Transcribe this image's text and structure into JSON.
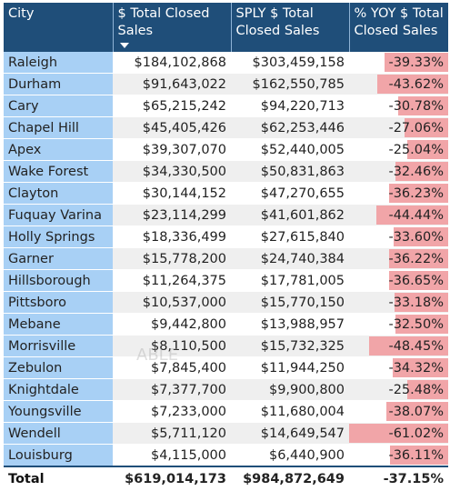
{
  "columns": [
    "City",
    "$ Total Closed Sales",
    "SPLY $ Total Closed Sales",
    "% YOY $ Total Closed Sales"
  ],
  "sort_icon": "sort-descending-icon",
  "rows": [
    {
      "city": "Raleigh",
      "total": "$184,102,868",
      "sply": "$303,459,158",
      "yoy": "-39.33%",
      "yoy_value": -39.33
    },
    {
      "city": "Durham",
      "total": "$91,643,022",
      "sply": "$162,550,785",
      "yoy": "-43.62%",
      "yoy_value": -43.62
    },
    {
      "city": "Cary",
      "total": "$65,215,242",
      "sply": "$94,220,713",
      "yoy": "-30.78%",
      "yoy_value": -30.78
    },
    {
      "city": "Chapel Hill",
      "total": "$45,405,426",
      "sply": "$62,253,446",
      "yoy": "-27.06%",
      "yoy_value": -27.06
    },
    {
      "city": "Apex",
      "total": "$39,307,070",
      "sply": "$52,440,005",
      "yoy": "-25.04%",
      "yoy_value": -25.04
    },
    {
      "city": "Wake Forest",
      "total": "$34,330,500",
      "sply": "$50,831,863",
      "yoy": "-32.46%",
      "yoy_value": -32.46
    },
    {
      "city": "Clayton",
      "total": "$30,144,152",
      "sply": "$47,270,655",
      "yoy": "-36.23%",
      "yoy_value": -36.23
    },
    {
      "city": "Fuquay Varina",
      "total": "$23,114,299",
      "sply": "$41,601,862",
      "yoy": "-44.44%",
      "yoy_value": -44.44
    },
    {
      "city": "Holly Springs",
      "total": "$18,336,499",
      "sply": "$27,615,840",
      "yoy": "-33.60%",
      "yoy_value": -33.6
    },
    {
      "city": "Garner",
      "total": "$15,778,200",
      "sply": "$24,740,384",
      "yoy": "-36.22%",
      "yoy_value": -36.22
    },
    {
      "city": "Hillsborough",
      "total": "$11,264,375",
      "sply": "$17,781,005",
      "yoy": "-36.65%",
      "yoy_value": -36.65
    },
    {
      "city": "Pittsboro",
      "total": "$10,537,000",
      "sply": "$15,770,150",
      "yoy": "-33.18%",
      "yoy_value": -33.18
    },
    {
      "city": "Mebane",
      "total": "$9,442,800",
      "sply": "$13,988,957",
      "yoy": "-32.50%",
      "yoy_value": -32.5
    },
    {
      "city": "Morrisville",
      "total": "$8,110,500",
      "sply": "$15,732,325",
      "yoy": "-48.45%",
      "yoy_value": -48.45
    },
    {
      "city": "Zebulon",
      "total": "$7,845,400",
      "sply": "$11,944,250",
      "yoy": "-34.32%",
      "yoy_value": -34.32
    },
    {
      "city": "Knightdale",
      "total": "$7,377,700",
      "sply": "$9,900,800",
      "yoy": "-25.48%",
      "yoy_value": -25.48
    },
    {
      "city": "Youngsville",
      "total": "$7,233,000",
      "sply": "$11,680,004",
      "yoy": "-38.07%",
      "yoy_value": -38.07
    },
    {
      "city": "Wendell",
      "total": "$5,711,120",
      "sply": "$14,649,547",
      "yoy": "-61.02%",
      "yoy_value": -61.02
    },
    {
      "city": "Louisburg",
      "total": "$4,115,000",
      "sply": "$6,440,900",
      "yoy": "-36.11%",
      "yoy_value": -36.11
    }
  ],
  "totals": {
    "label": "Total",
    "total": "$619,014,173",
    "sply": "$984,872,649",
    "yoy": "-37.15%"
  },
  "watermark": "ABLE",
  "colors": {
    "header_bg": "#1f4e79",
    "city_bg": "#a8d0f5",
    "bar": "#f1a5a8"
  }
}
